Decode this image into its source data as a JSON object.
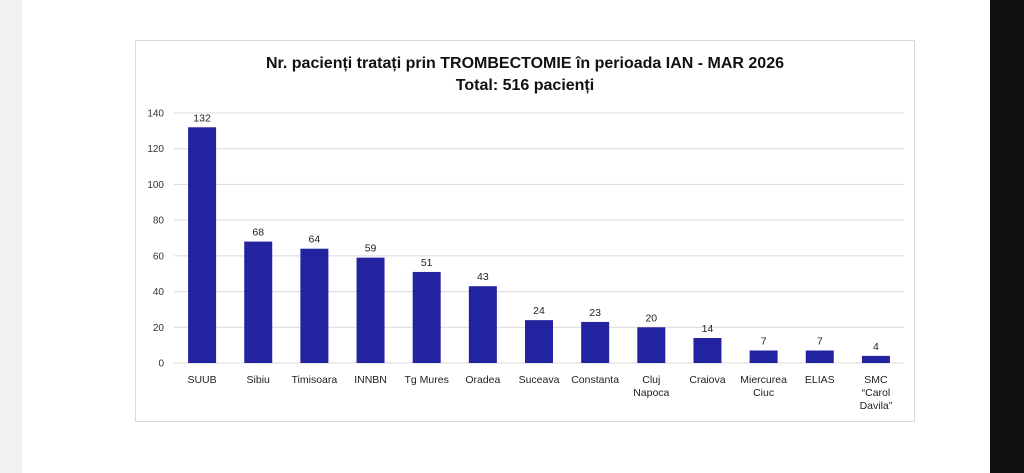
{
  "chart_data": {
    "type": "bar",
    "title": "Nr. pacienți tratați prin TROMBECTOMIE în perioada IAN - MAR 2026",
    "subtitle": "Total: 516 pacienți",
    "categories": [
      [
        "SUUB"
      ],
      [
        "Sibiu"
      ],
      [
        "Timisoara"
      ],
      [
        "INNBN"
      ],
      [
        "Tg Mures"
      ],
      [
        "Oradea"
      ],
      [
        "Suceava"
      ],
      [
        "Constanta"
      ],
      [
        "Cluj",
        "Napoca"
      ],
      [
        "Craiova"
      ],
      [
        "Miercurea",
        "Ciuc"
      ],
      [
        "ELIAS"
      ],
      [
        "SMC",
        "“Carol",
        "Davila”"
      ]
    ],
    "values": [
      132,
      68,
      64,
      59,
      51,
      43,
      24,
      23,
      20,
      14,
      7,
      7,
      4
    ],
    "ylim": [
      0,
      140
    ],
    "yticks": [
      0,
      20,
      40,
      60,
      80,
      100,
      120,
      140
    ],
    "grid": true,
    "bar_color": "#2323a0",
    "grid_color": "#d9d9d9"
  }
}
